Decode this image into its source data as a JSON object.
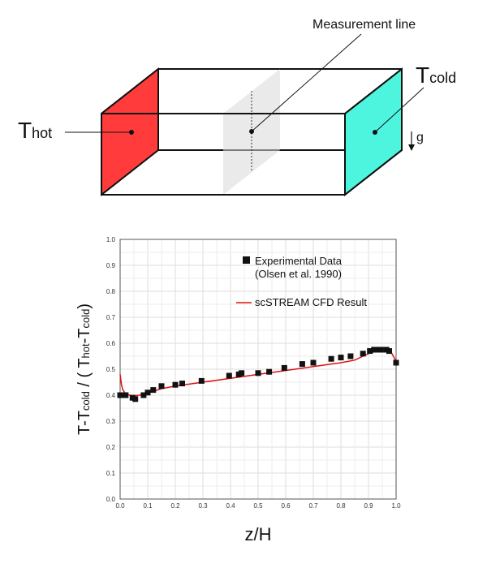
{
  "diagram": {
    "measurement_label": "Measurement line",
    "hot_label": {
      "main": "T",
      "sub": "hot"
    },
    "cold_label": {
      "main": "T",
      "sub": "cold"
    },
    "gravity_label": "g",
    "colors": {
      "hot_face": "#ff3b3b",
      "cold_face": "#4ef5de",
      "plane": "#d9d9d9"
    }
  },
  "chart_data": {
    "type": "scatter",
    "xlabel": "z/H",
    "ylabel": {
      "num_main": "T-T",
      "num_sub": "cold",
      "den_open": " / ( T",
      "den_sub1": "hot",
      "den_mid": "-T",
      "den_sub2": "cold",
      "den_close": ")"
    },
    "xlim": [
      0.0,
      1.0
    ],
    "ylim": [
      0.0,
      1.0
    ],
    "xticks": [
      "0.0",
      "0.1",
      "0.2",
      "0.3",
      "0.4",
      "0.5",
      "0.6",
      "0.7",
      "0.8",
      "0.9",
      "1.0"
    ],
    "yticks": [
      "0.0",
      "0.1",
      "0.2",
      "0.3",
      "0.4",
      "0.5",
      "0.6",
      "0.7",
      "0.8",
      "0.9",
      "1.0"
    ],
    "grid": true,
    "legend": {
      "position": "top-right",
      "experimental": [
        "Experimental Data",
        "(Olsen et al. 1990)"
      ],
      "cfd": "scSTREAM CFD Result"
    },
    "series": [
      {
        "name": "Experimental Data (Olsen et al. 1990)",
        "marker": "square",
        "color": "#111111",
        "points": [
          [
            0.0,
            0.4
          ],
          [
            0.02,
            0.4
          ],
          [
            0.045,
            0.39
          ],
          [
            0.055,
            0.385
          ],
          [
            0.085,
            0.4
          ],
          [
            0.1,
            0.41
          ],
          [
            0.12,
            0.42
          ],
          [
            0.15,
            0.435
          ],
          [
            0.2,
            0.44
          ],
          [
            0.225,
            0.445
          ],
          [
            0.295,
            0.455
          ],
          [
            0.395,
            0.475
          ],
          [
            0.43,
            0.48
          ],
          [
            0.44,
            0.485
          ],
          [
            0.5,
            0.485
          ],
          [
            0.54,
            0.49
          ],
          [
            0.595,
            0.505
          ],
          [
            0.66,
            0.52
          ],
          [
            0.7,
            0.525
          ],
          [
            0.765,
            0.54
          ],
          [
            0.8,
            0.545
          ],
          [
            0.835,
            0.55
          ],
          [
            0.88,
            0.56
          ],
          [
            0.905,
            0.57
          ],
          [
            0.92,
            0.575
          ],
          [
            0.935,
            0.575
          ],
          [
            0.945,
            0.575
          ],
          [
            0.965,
            0.575
          ],
          [
            0.975,
            0.57
          ],
          [
            1.0,
            0.525
          ]
        ]
      },
      {
        "name": "scSTREAM CFD Result",
        "line": true,
        "color": "#e01010",
        "points": [
          [
            0.0,
            0.48
          ],
          [
            0.005,
            0.44
          ],
          [
            0.01,
            0.42
          ],
          [
            0.02,
            0.405
          ],
          [
            0.035,
            0.4
          ],
          [
            0.05,
            0.398
          ],
          [
            0.07,
            0.4
          ],
          [
            0.09,
            0.405
          ],
          [
            0.12,
            0.415
          ],
          [
            0.15,
            0.425
          ],
          [
            0.2,
            0.435
          ],
          [
            0.3,
            0.45
          ],
          [
            0.4,
            0.465
          ],
          [
            0.5,
            0.48
          ],
          [
            0.6,
            0.495
          ],
          [
            0.7,
            0.51
          ],
          [
            0.8,
            0.525
          ],
          [
            0.85,
            0.535
          ],
          [
            0.88,
            0.55
          ],
          [
            0.9,
            0.56
          ],
          [
            0.93,
            0.57
          ],
          [
            0.96,
            0.575
          ],
          [
            0.98,
            0.57
          ],
          [
            0.99,
            0.55
          ],
          [
            1.0,
            0.53
          ]
        ]
      }
    ]
  }
}
